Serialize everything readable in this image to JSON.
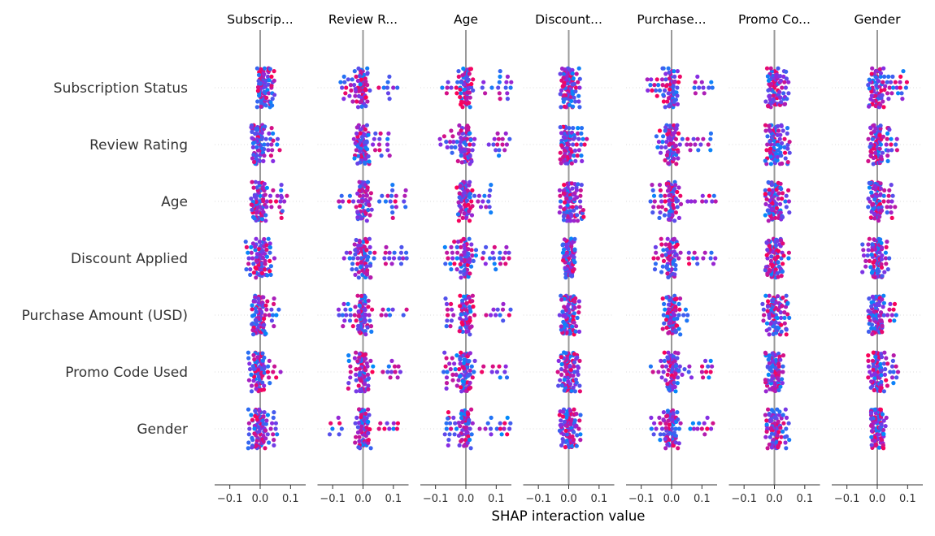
{
  "chart_data": {
    "type": "scatter",
    "subtype": "shap-interaction-beeswarm",
    "xlabel": "SHAP interaction value",
    "xlim": [
      -0.15,
      0.15
    ],
    "xticks": [
      -0.1,
      0.0,
      0.1
    ],
    "xtick_labels": [
      "−0.1",
      "0.0",
      "0.1"
    ],
    "rows": [
      "Subscription Status",
      "Review Rating",
      "Age",
      "Discount Applied",
      "Purchase Amount (USD)",
      "Promo Code Used",
      "Gender"
    ],
    "panels": [
      "Subscrip...",
      "Review R...",
      "Age",
      "Discount...",
      "Purchase...",
      "Promo Co...",
      "Gender"
    ],
    "color_low": "#008bfb",
    "color_mid": "#8a2be2",
    "color_high": "#ff0052",
    "zero_line_color": "#999999",
    "grid": "dotted horizontal",
    "cells": [
      [
        [
          -0.01,
          0.01,
          0.05
        ],
        [
          -0.08,
          0.0,
          0.14
        ],
        [
          -0.08,
          0.0,
          0.15
        ],
        [
          -0.03,
          0.0,
          0.04
        ],
        [
          -0.08,
          0.0,
          0.14
        ],
        [
          -0.03,
          0.0,
          0.05
        ],
        [
          -0.03,
          0.0,
          0.1
        ]
      ],
      [
        [
          -0.03,
          0.0,
          0.07
        ],
        [
          -0.03,
          0.0,
          0.09
        ],
        [
          -0.09,
          0.0,
          0.15
        ],
        [
          -0.03,
          0.0,
          0.06
        ],
        [
          -0.05,
          0.0,
          0.13
        ],
        [
          -0.03,
          0.0,
          0.05
        ],
        [
          -0.03,
          0.0,
          0.07
        ]
      ],
      [
        [
          -0.03,
          0.0,
          0.09
        ],
        [
          -0.09,
          0.0,
          0.15
        ],
        [
          -0.03,
          0.0,
          0.1
        ],
        [
          -0.03,
          0.0,
          0.05
        ],
        [
          -0.07,
          0.0,
          0.15
        ],
        [
          -0.03,
          0.0,
          0.05
        ],
        [
          -0.03,
          0.0,
          0.06
        ]
      ],
      [
        [
          -0.05,
          0.0,
          0.05
        ],
        [
          -0.07,
          0.0,
          0.15
        ],
        [
          -0.07,
          0.0,
          0.15
        ],
        [
          -0.02,
          0.0,
          0.02
        ],
        [
          -0.06,
          0.0,
          0.15
        ],
        [
          -0.03,
          0.0,
          0.05
        ],
        [
          -0.05,
          0.0,
          0.04
        ]
      ],
      [
        [
          -0.03,
          0.0,
          0.07
        ],
        [
          -0.09,
          0.0,
          0.15
        ],
        [
          -0.07,
          0.0,
          0.15
        ],
        [
          -0.03,
          0.0,
          0.04
        ],
        [
          -0.03,
          0.0,
          0.06
        ],
        [
          -0.04,
          0.0,
          0.05
        ],
        [
          -0.03,
          0.0,
          0.07
        ]
      ],
      [
        [
          -0.04,
          0.0,
          0.07
        ],
        [
          -0.05,
          0.0,
          0.13
        ],
        [
          -0.08,
          0.0,
          0.15
        ],
        [
          -0.04,
          0.0,
          0.04
        ],
        [
          -0.07,
          0.0,
          0.15
        ],
        [
          -0.03,
          0.0,
          0.03
        ],
        [
          -0.03,
          0.0,
          0.07
        ]
      ],
      [
        [
          -0.04,
          0.0,
          0.07
        ],
        [
          -0.11,
          0.0,
          0.13
        ],
        [
          -0.07,
          0.0,
          0.15
        ],
        [
          -0.03,
          0.0,
          0.04
        ],
        [
          -0.07,
          0.0,
          0.15
        ],
        [
          -0.04,
          0.0,
          0.05
        ],
        [
          -0.02,
          0.0,
          0.03
        ]
      ]
    ]
  }
}
